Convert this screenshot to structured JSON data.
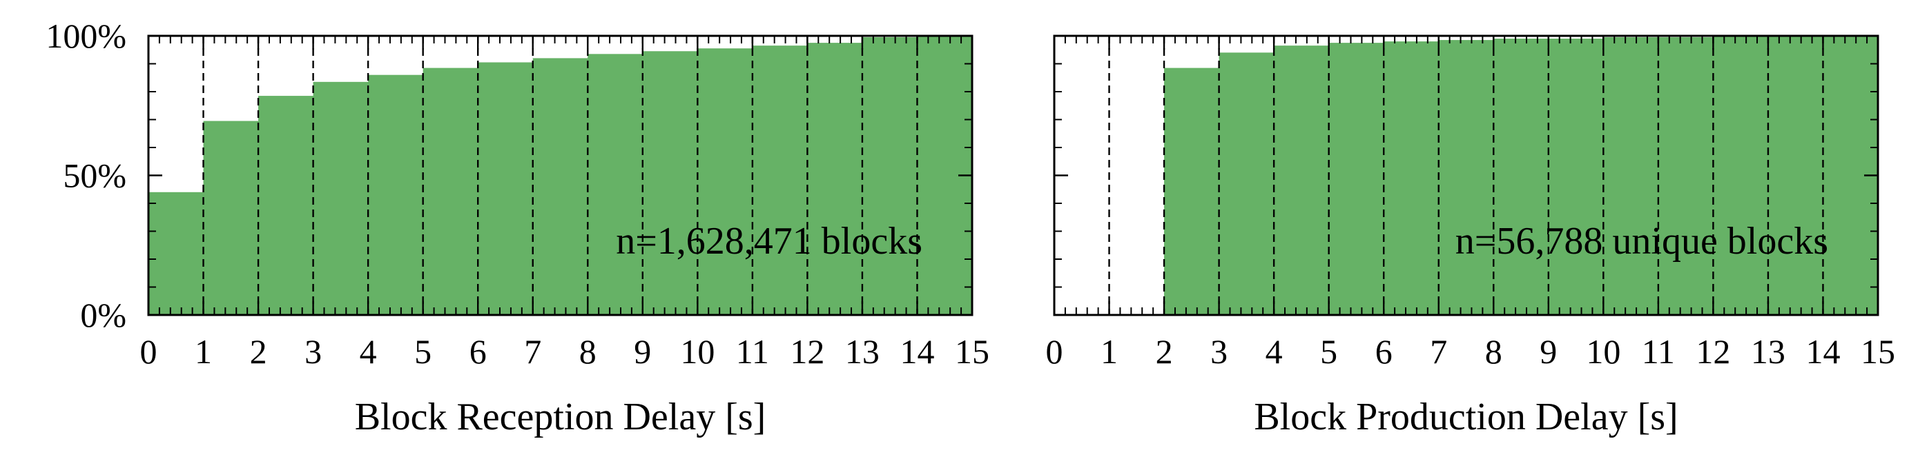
{
  "chart_data": [
    {
      "type": "bar",
      "xlabel": "Block Reception Delay [s]",
      "ylabel": "",
      "xlim": [
        0,
        15
      ],
      "ylim": [
        0,
        100
      ],
      "x_tick_labels": [
        "0",
        "1",
        "2",
        "3",
        "4",
        "5",
        "6",
        "7",
        "8",
        "9",
        "10",
        "11",
        "12",
        "13",
        "14",
        "15"
      ],
      "y_tick_labels": [
        "0%",
        "50%",
        "100%"
      ],
      "y_ticks": [
        0,
        50,
        100
      ],
      "bins": [
        0,
        1,
        2,
        3,
        4,
        5,
        6,
        7,
        8,
        9,
        10,
        11,
        12,
        13,
        14
      ],
      "values": [
        44,
        69.5,
        78.5,
        83.5,
        86,
        88.5,
        90.5,
        92,
        93.5,
        94.5,
        95.5,
        96.5,
        97.5,
        99.5,
        100
      ],
      "annotation": "n=1,628,471 blocks",
      "grid": "vertical dashed",
      "color": "#66b266"
    },
    {
      "type": "bar",
      "xlabel": "Block Production Delay [s]",
      "ylabel": "",
      "xlim": [
        0,
        15
      ],
      "ylim": [
        0,
        100
      ],
      "x_tick_labels": [
        "0",
        "1",
        "2",
        "3",
        "4",
        "5",
        "6",
        "7",
        "8",
        "9",
        "10",
        "11",
        "12",
        "13",
        "14",
        "15"
      ],
      "y_tick_labels": [],
      "y_ticks": [
        0,
        50,
        100
      ],
      "bins": [
        0,
        1,
        2,
        3,
        4,
        5,
        6,
        7,
        8,
        9,
        10,
        11,
        12,
        13,
        14
      ],
      "values": [
        0,
        0,
        88.5,
        94,
        96.5,
        97.5,
        98,
        98.5,
        99,
        99,
        99.5,
        99.5,
        100,
        100,
        100
      ],
      "annotation": "n=56,788 unique blocks",
      "grid": "vertical dashed",
      "color": "#66b266"
    }
  ]
}
